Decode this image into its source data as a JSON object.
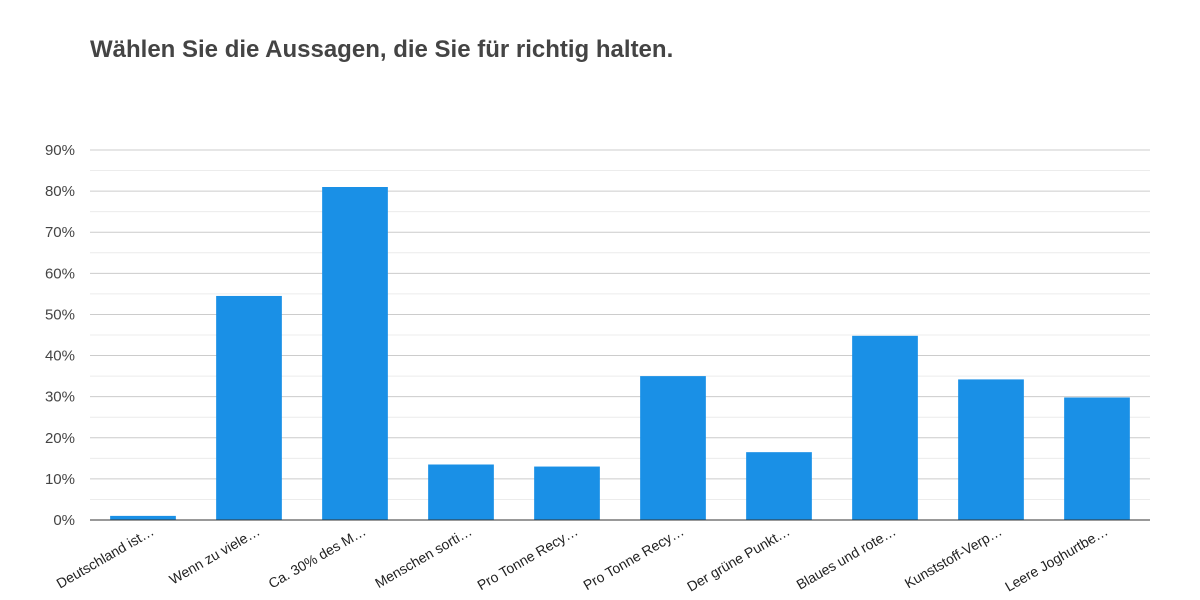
{
  "title": "Wählen Sie die Aussagen, die Sie für richtig halten.",
  "colors": {
    "bar": "#1a90e6",
    "grid": "#cccccc",
    "minor_grid": "#ececec",
    "axis": "#333333"
  },
  "chart_data": {
    "type": "bar",
    "categories": [
      "Deutschland ist…",
      "Wenn zu viele…",
      "Ca. 30% des M…",
      "Menschen sorti…",
      "Pro Tonne Recy…",
      "Pro Tonne Recy…",
      "Der grüne Punkt…",
      "Blaues und rote…",
      "Kunststoff-Verp…",
      "Leere Joghurtbe…"
    ],
    "values": [
      1,
      54.5,
      81,
      13.5,
      13,
      35,
      16.5,
      44.8,
      34.2,
      29.8
    ],
    "yticks": [
      "0%",
      "10%",
      "20%",
      "30%",
      "40%",
      "50%",
      "60%",
      "70%",
      "80%",
      "90%"
    ],
    "ylim": [
      0,
      90
    ],
    "grid": true
  }
}
